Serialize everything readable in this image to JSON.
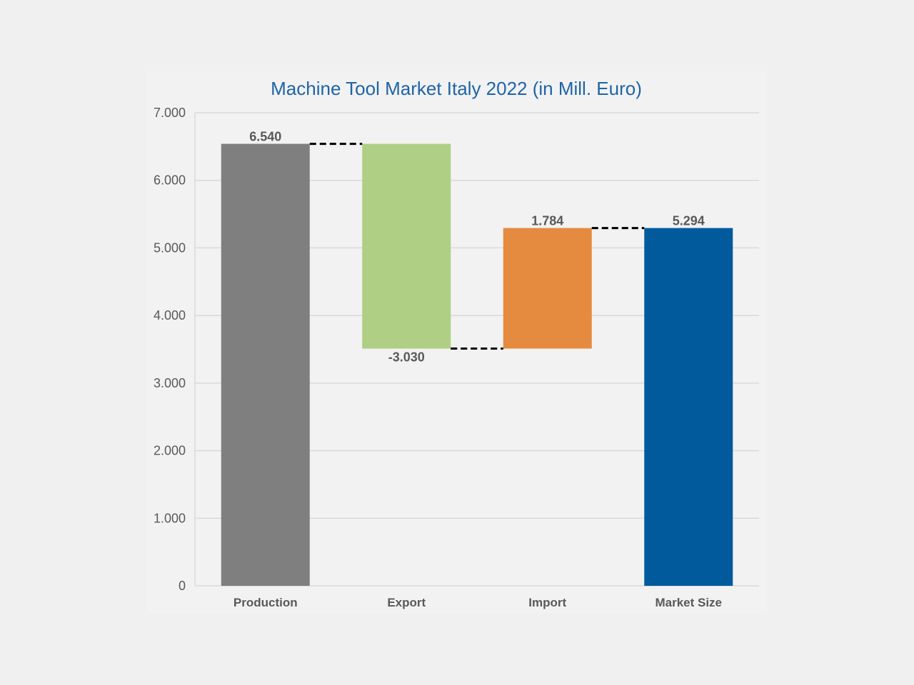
{
  "chart_data": {
    "type": "waterfall",
    "title": "Machine Tool Market Italy 2022 (in Mill. Euro)",
    "xlabel": "",
    "ylabel": "",
    "ylim": [
      0,
      7000
    ],
    "y_ticks": [
      {
        "value": 0,
        "label": "0"
      },
      {
        "value": 1000,
        "label": "1.000"
      },
      {
        "value": 2000,
        "label": "2.000"
      },
      {
        "value": 3000,
        "label": "3.000"
      },
      {
        "value": 4000,
        "label": "4.000"
      },
      {
        "value": 5000,
        "label": "5.000"
      },
      {
        "value": 6000,
        "label": "6.000"
      },
      {
        "value": 7000,
        "label": "7.000"
      }
    ],
    "grid": true,
    "categories": [
      "Production",
      "Export",
      "Import",
      "Market Size"
    ],
    "bars": [
      {
        "category": "Production",
        "value": 6540,
        "start": 0,
        "end": 6540,
        "label": "6.540",
        "label_position": "top",
        "color": "#7f7f7f"
      },
      {
        "category": "Export",
        "value": -3030,
        "start": 6540,
        "end": 3510,
        "label": "-3.030",
        "label_position": "bottom",
        "color": "#aecf84"
      },
      {
        "category": "Import",
        "value": 1784,
        "start": 3510,
        "end": 5294,
        "label": "1.784",
        "label_position": "top",
        "color": "#e58b3f"
      },
      {
        "category": "Market Size",
        "value": 5294,
        "start": 0,
        "end": 5294,
        "label": "5.294",
        "label_position": "top",
        "color": "#005a9c"
      }
    ],
    "connectors": [
      {
        "from": 0,
        "to": 1,
        "level": 6540
      },
      {
        "from": 1,
        "to": 2,
        "level": 3510
      },
      {
        "from": 2,
        "to": 3,
        "level": 5294
      }
    ],
    "colors": {
      "title": "#1f64a6",
      "tick_text": "#595959",
      "category_text": "#595959",
      "value_label": "#595959",
      "grid": "#d9d9d9",
      "connector": "#000000"
    }
  }
}
